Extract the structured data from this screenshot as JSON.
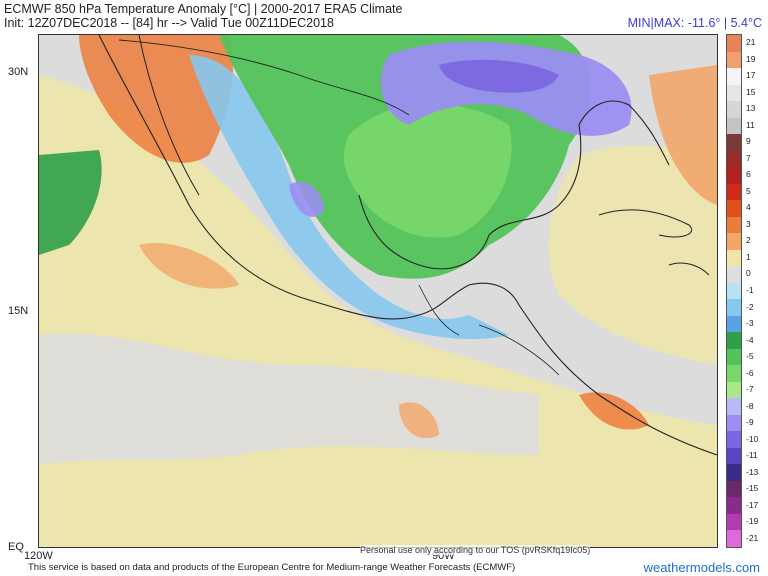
{
  "title": "ECMWF 850 hPa Temperature Anomaly [°C] | 2000-2017 ERA5 Climate",
  "subtitle": "Init: 12Z07DEC2018 -- [84] hr --> Valid Tue 00Z11DEC2018",
  "minmax": "MIN|MAX: -11.6° | 5.4°C",
  "lat_labels": [
    "30N",
    "15N",
    "EQ"
  ],
  "lon_labels": [
    "120W",
    "90W"
  ],
  "colorbar": [
    {
      "label": "21",
      "color": "#e8825a"
    },
    {
      "label": "19",
      "color": "#f0a070"
    },
    {
      "label": "17",
      "color": "#f5f5f5"
    },
    {
      "label": "15",
      "color": "#e6e6e6"
    },
    {
      "label": "13",
      "color": "#d6d6d6"
    },
    {
      "label": "11",
      "color": "#c4c4c4"
    },
    {
      "label": "9",
      "color": "#7a3a3a"
    },
    {
      "label": "7",
      "color": "#9b2b2b"
    },
    {
      "label": "6",
      "color": "#b42020"
    },
    {
      "label": "5",
      "color": "#cf2a1c"
    },
    {
      "label": "4",
      "color": "#e0501c"
    },
    {
      "label": "3",
      "color": "#ec7c3c"
    },
    {
      "label": "2",
      "color": "#f2a66a"
    },
    {
      "label": "1",
      "color": "#f0e6a6"
    },
    {
      "label": "0",
      "color": "#dedede"
    },
    {
      "label": "-1",
      "color": "#b8e2f2"
    },
    {
      "label": "-2",
      "color": "#86c8ee"
    },
    {
      "label": "-3",
      "color": "#5aa2e6"
    },
    {
      "label": "-4",
      "color": "#2ea04a"
    },
    {
      "label": "-5",
      "color": "#52c25a"
    },
    {
      "label": "-6",
      "color": "#7ad86a"
    },
    {
      "label": "-7",
      "color": "#a8e88a"
    },
    {
      "label": "-8",
      "color": "#b8b8f4"
    },
    {
      "label": "-9",
      "color": "#9a8ef0"
    },
    {
      "label": "-10",
      "color": "#7a66e0"
    },
    {
      "label": "-11",
      "color": "#5a46c2"
    },
    {
      "label": "-13",
      "color": "#3c2a8a"
    },
    {
      "label": "-15",
      "color": "#6a2a6a"
    },
    {
      "label": "-17",
      "color": "#8a2a8a"
    },
    {
      "label": "-19",
      "color": "#b43ab4"
    },
    {
      "label": "-21",
      "color": "#dc6adc"
    }
  ],
  "personal_note": "Personal use only according to our TOS (pvRSKfq19Ic05)",
  "footer": "This service is based on data and products of the European Centre for Medium-range Weather Forecasts (ECMWF)",
  "brand": "weathermodels.com"
}
